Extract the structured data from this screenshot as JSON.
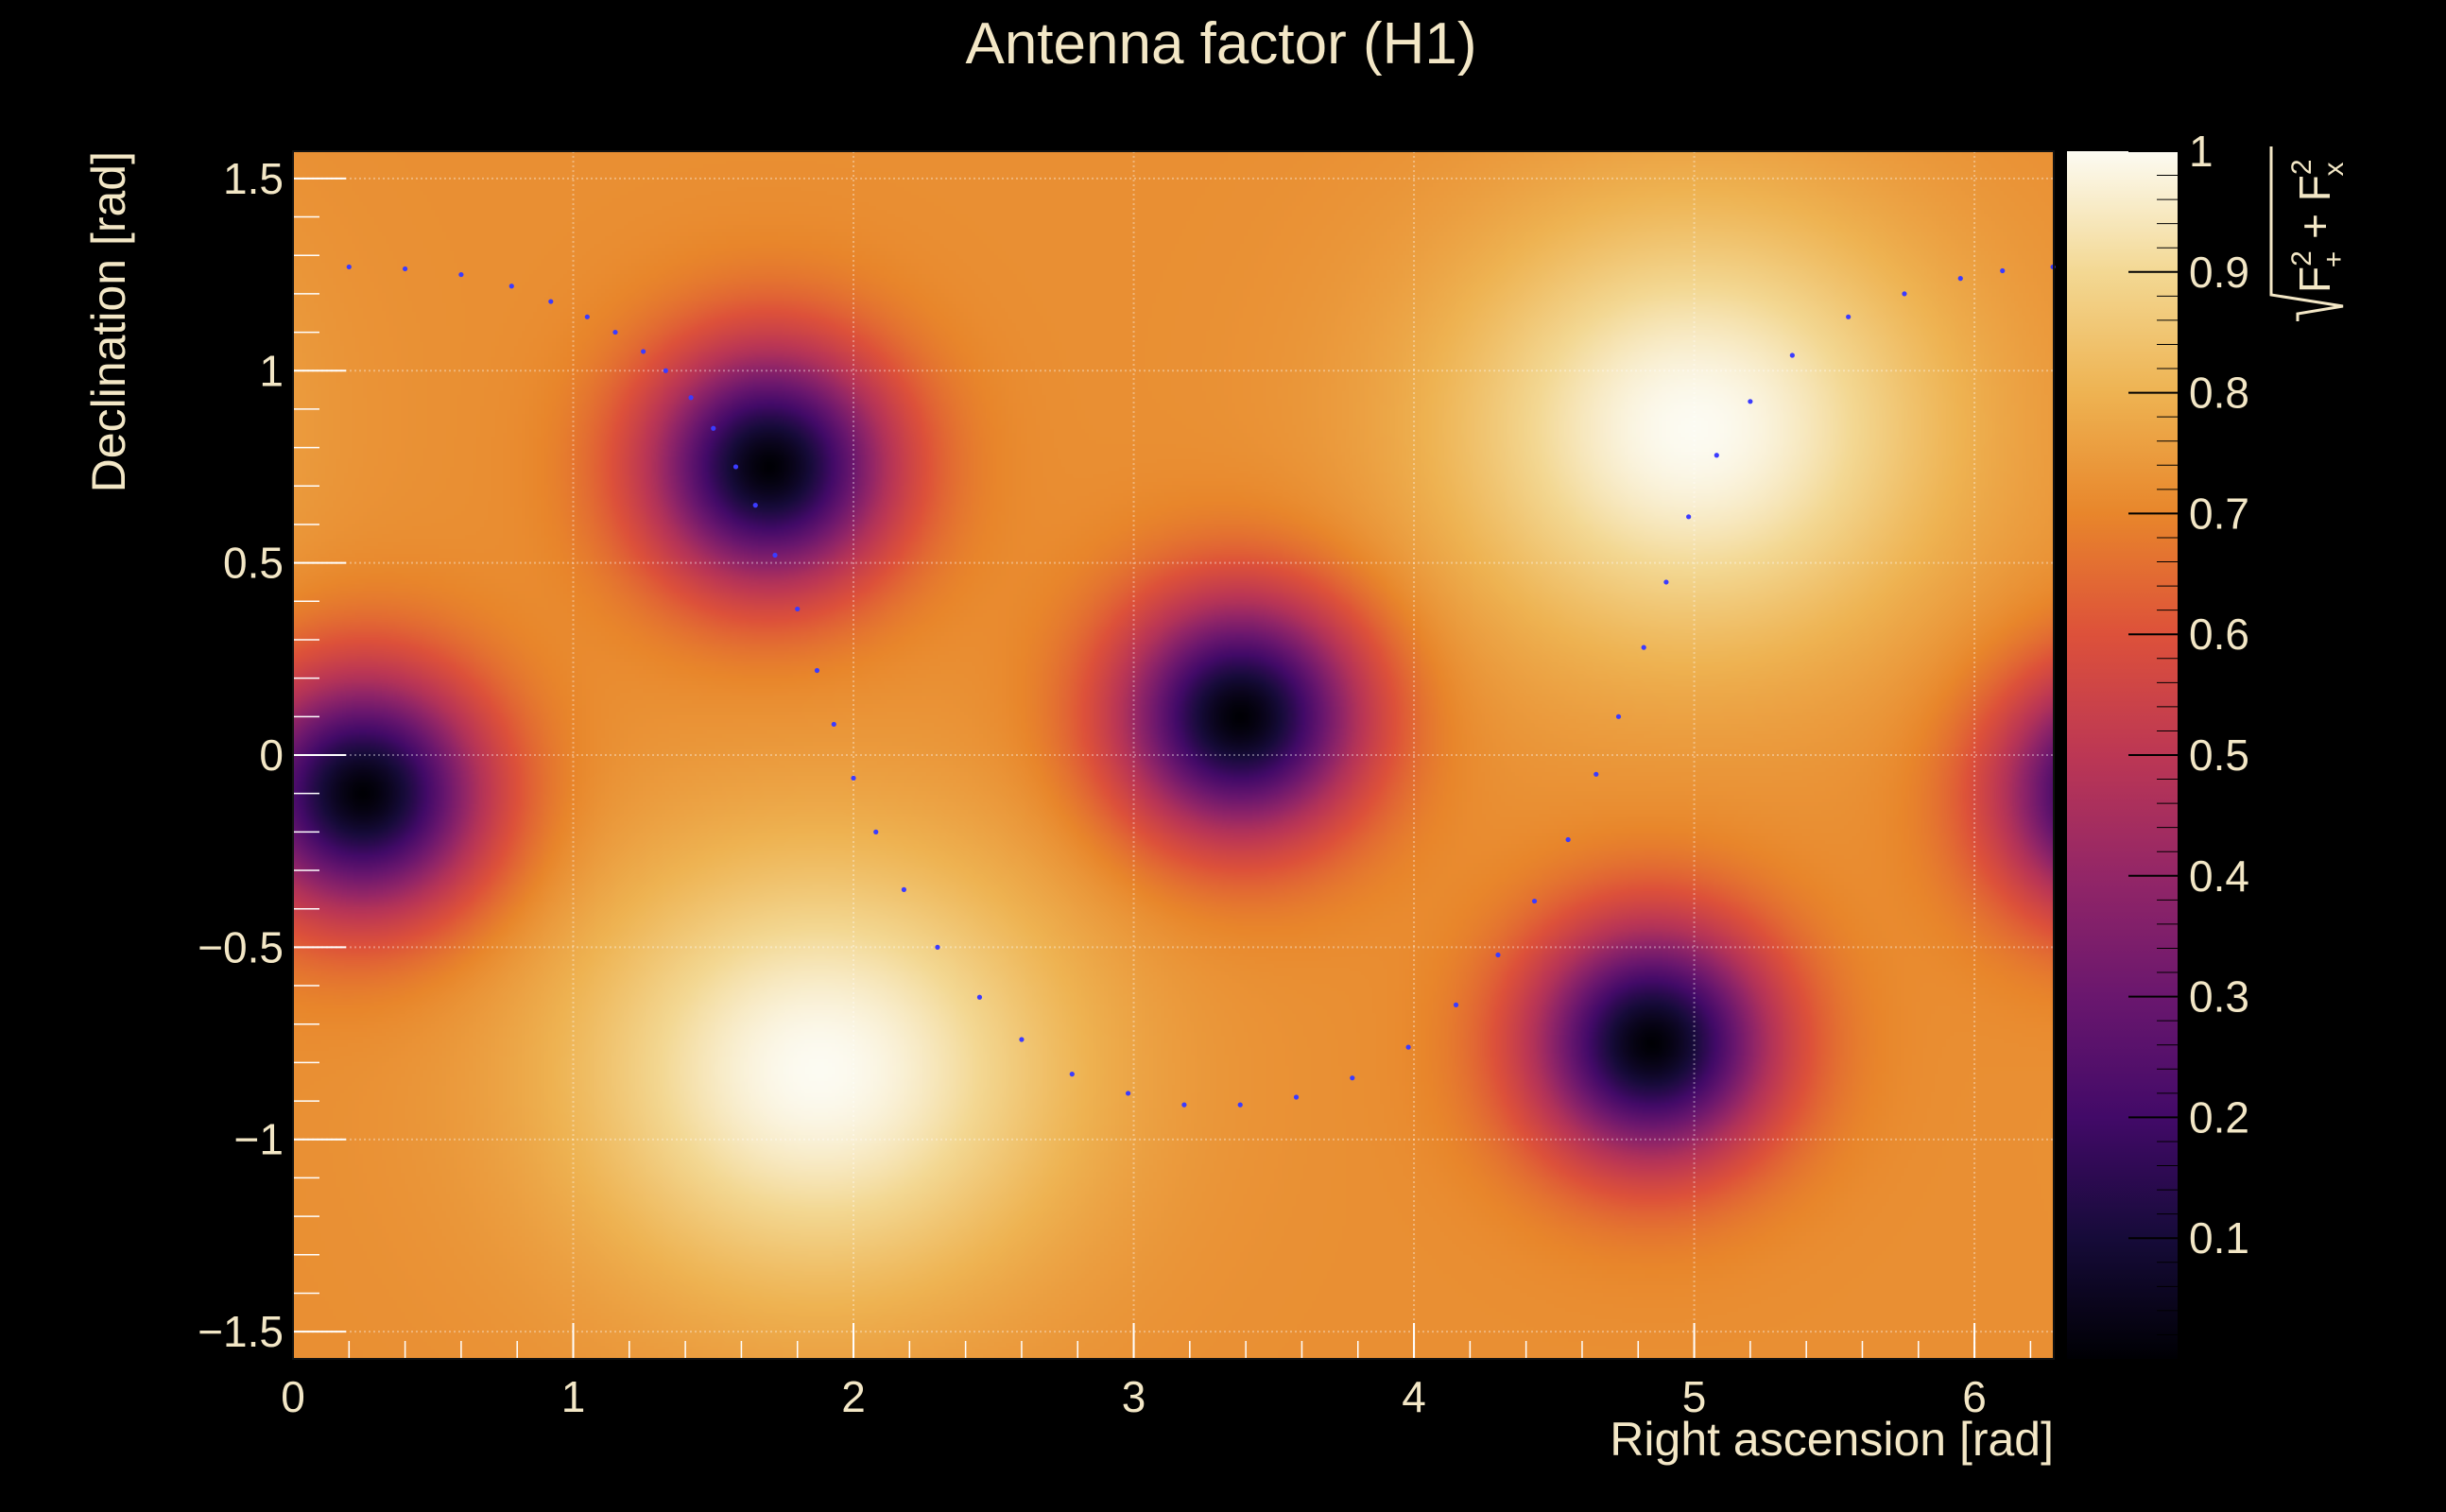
{
  "chart_data": {
    "type": "heatmap",
    "title": "Antenna factor (H1)",
    "xlabel": "Right ascension [rad]",
    "ylabel": "Declination [rad]",
    "colorbar_label": "√(F₊² + Fₓ²)",
    "colorbar_label_parts": {
      "root": "√",
      "f1": "F",
      "sup1": "2",
      "sub1": "+",
      "plus": " + ",
      "f2": "F",
      "sup2": "2",
      "sub2": "x"
    },
    "xlim": [
      0,
      6.283
    ],
    "ylim": [
      -1.571,
      1.571
    ],
    "zlim": [
      0,
      1
    ],
    "x_ticks": [
      "0",
      "1",
      "2",
      "3",
      "4",
      "5",
      "6"
    ],
    "y_ticks": [
      "−1.5",
      "−1",
      "−0.5",
      "0",
      "0.5",
      "1",
      "1.5"
    ],
    "colorbar_ticks": [
      "0.1",
      "0.2",
      "0.3",
      "0.4",
      "0.5",
      "0.6",
      "0.7",
      "0.8",
      "0.9",
      "1"
    ],
    "colormap": "inferno-like (black → purple → red → orange → white)",
    "grid": true,
    "field_features": {
      "minima": [
        {
          "ra": 0.25,
          "dec": -0.1,
          "value": 0.0
        },
        {
          "ra": 1.7,
          "dec": 0.75,
          "value": 0.0
        },
        {
          "ra": 3.38,
          "dec": 0.1,
          "value": 0.0
        },
        {
          "ra": 4.85,
          "dec": -0.75,
          "value": 0.0
        }
      ],
      "maxima": [
        {
          "ra": 1.88,
          "dec": -0.82,
          "value": 1.0
        },
        {
          "ra": 5.0,
          "dec": 0.85,
          "value": 1.0
        }
      ],
      "background_value": 0.72
    },
    "overlay_curve": {
      "type": "dotted-line",
      "color": "#3b3bff",
      "points": [
        {
          "ra": 0.2,
          "dec": 1.27
        },
        {
          "ra": 0.4,
          "dec": 1.265
        },
        {
          "ra": 0.6,
          "dec": 1.25
        },
        {
          "ra": 0.78,
          "dec": 1.22
        },
        {
          "ra": 0.92,
          "dec": 1.18
        },
        {
          "ra": 1.05,
          "dec": 1.14
        },
        {
          "ra": 1.15,
          "dec": 1.1
        },
        {
          "ra": 1.25,
          "dec": 1.05
        },
        {
          "ra": 1.33,
          "dec": 1.0
        },
        {
          "ra": 1.42,
          "dec": 0.93
        },
        {
          "ra": 1.5,
          "dec": 0.85
        },
        {
          "ra": 1.58,
          "dec": 0.75
        },
        {
          "ra": 1.65,
          "dec": 0.65
        },
        {
          "ra": 1.72,
          "dec": 0.52
        },
        {
          "ra": 1.8,
          "dec": 0.38
        },
        {
          "ra": 1.87,
          "dec": 0.22
        },
        {
          "ra": 1.93,
          "dec": 0.08
        },
        {
          "ra": 2.0,
          "dec": -0.06
        },
        {
          "ra": 2.08,
          "dec": -0.2
        },
        {
          "ra": 2.18,
          "dec": -0.35
        },
        {
          "ra": 2.3,
          "dec": -0.5
        },
        {
          "ra": 2.45,
          "dec": -0.63
        },
        {
          "ra": 2.6,
          "dec": -0.74
        },
        {
          "ra": 2.78,
          "dec": -0.83
        },
        {
          "ra": 2.98,
          "dec": -0.88
        },
        {
          "ra": 3.18,
          "dec": -0.91
        },
        {
          "ra": 3.38,
          "dec": -0.91
        },
        {
          "ra": 3.58,
          "dec": -0.89
        },
        {
          "ra": 3.78,
          "dec": -0.84
        },
        {
          "ra": 3.98,
          "dec": -0.76
        },
        {
          "ra": 4.15,
          "dec": -0.65
        },
        {
          "ra": 4.3,
          "dec": -0.52
        },
        {
          "ra": 4.43,
          "dec": -0.38
        },
        {
          "ra": 4.55,
          "dec": -0.22
        },
        {
          "ra": 4.65,
          "dec": -0.05
        },
        {
          "ra": 4.73,
          "dec": 0.1
        },
        {
          "ra": 4.82,
          "dec": 0.28
        },
        {
          "ra": 4.9,
          "dec": 0.45
        },
        {
          "ra": 4.98,
          "dec": 0.62
        },
        {
          "ra": 5.08,
          "dec": 0.78
        },
        {
          "ra": 5.2,
          "dec": 0.92
        },
        {
          "ra": 5.35,
          "dec": 1.04
        },
        {
          "ra": 5.55,
          "dec": 1.14
        },
        {
          "ra": 5.75,
          "dec": 1.2
        },
        {
          "ra": 5.95,
          "dec": 1.24
        },
        {
          "ra": 6.1,
          "dec": 1.26
        },
        {
          "ra": 6.28,
          "dec": 1.27
        }
      ]
    }
  }
}
